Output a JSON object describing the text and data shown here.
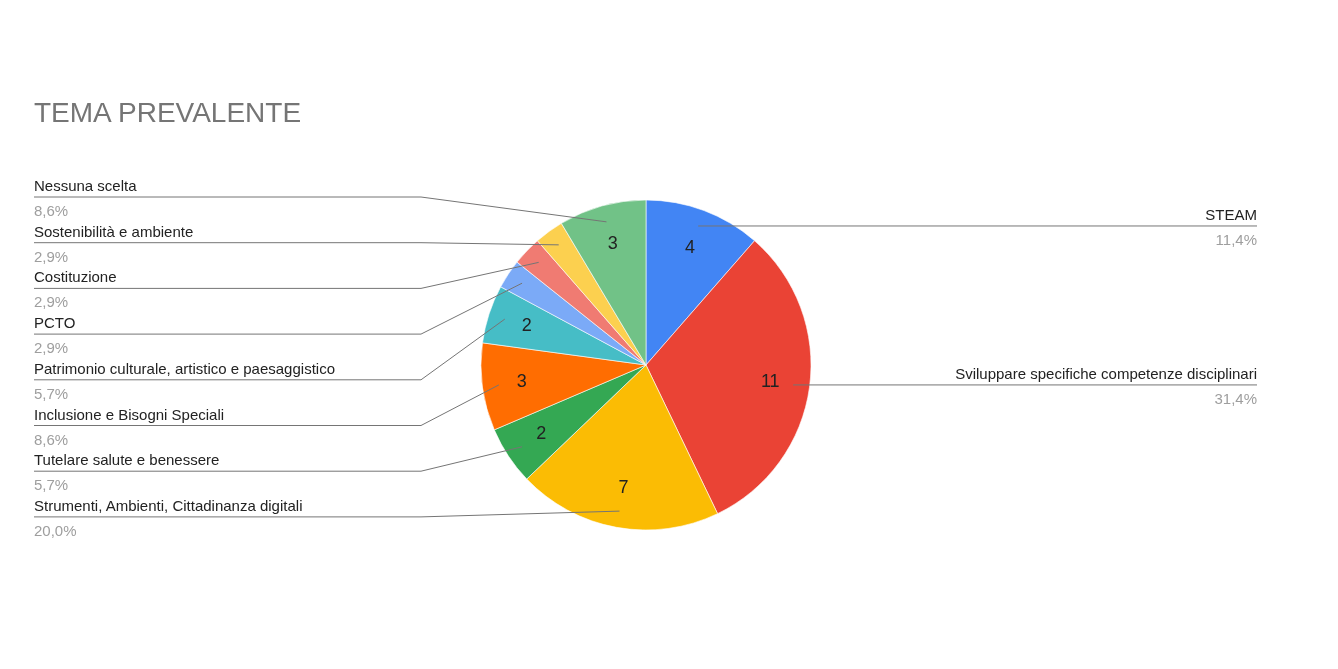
{
  "chart_data": {
    "type": "pie",
    "title": "TEMA PREVALENTE",
    "categories": [
      "STEAM",
      "Sviluppare specifiche competenze disciplinari",
      "Strumenti, Ambienti, Cittadinanza digitali",
      "Tutelare salute e benessere",
      "Inclusione e Bisogni Speciali",
      "Patrimonio culturale, artistico e paesaggistico",
      "PCTO",
      "Costituzione",
      "Sostenibilità e ambiente",
      "Nessuna scelta"
    ],
    "values": [
      4,
      11,
      7,
      2,
      3,
      2,
      1,
      1,
      1,
      3
    ],
    "value_labels": [
      "4",
      "11",
      "7",
      "2",
      "3",
      "2",
      null,
      null,
      null,
      "3"
    ],
    "colors": [
      "#4285f4",
      "#ea4335",
      "#fbbc04",
      "#34a853",
      "#ff6d01",
      "#46bdc6",
      "#7baaf7",
      "#f07b72",
      "#fcd04f",
      "#71c287"
    ],
    "annotations": [
      "11,4%",
      "31,4%",
      "20,0%",
      "5,7%",
      "8,6%",
      "5,7%",
      "2,9%",
      "2,9%",
      "2,9%",
      "8,6%"
    ]
  }
}
